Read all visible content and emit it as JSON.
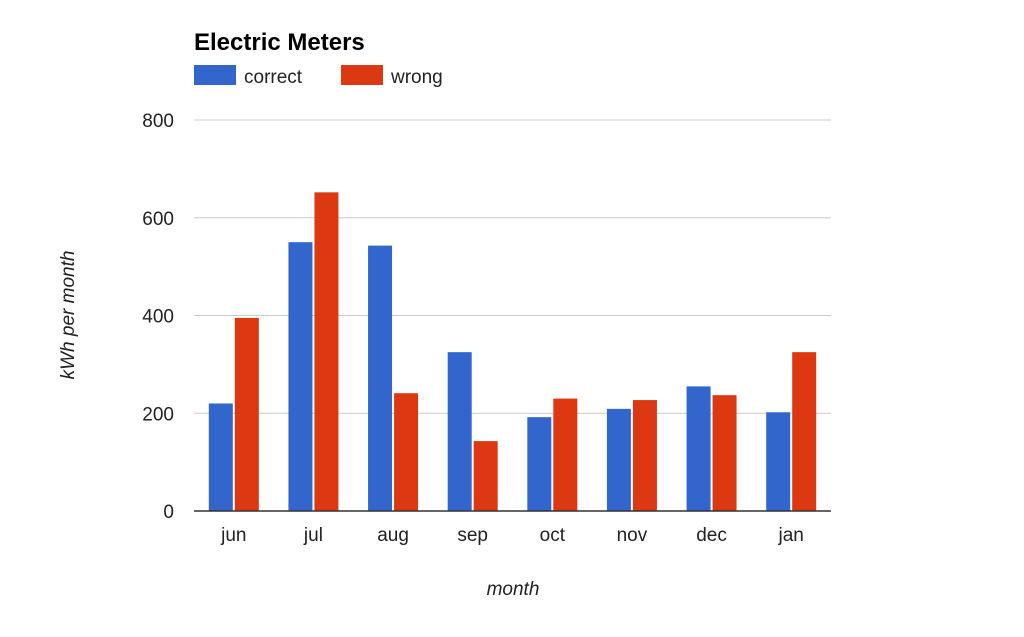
{
  "chart_data": {
    "type": "bar",
    "title": "Electric Meters",
    "xlabel": "month",
    "ylabel": "kWh per month",
    "categories": [
      "jun",
      "jul",
      "aug",
      "sep",
      "oct",
      "nov",
      "dec",
      "jan"
    ],
    "series": [
      {
        "name": "correct",
        "color": "#3366cc",
        "values": [
          220,
          550,
          543,
          325,
          192,
          209,
          255,
          202
        ]
      },
      {
        "name": "wrong",
        "color": "#dc3912",
        "values": [
          395,
          652,
          241,
          143,
          230,
          227,
          237,
          325
        ]
      }
    ],
    "ylim": [
      0,
      800
    ],
    "yticks": [
      0,
      200,
      400,
      600,
      800
    ],
    "grid": true,
    "legend_position": "top-left"
  }
}
